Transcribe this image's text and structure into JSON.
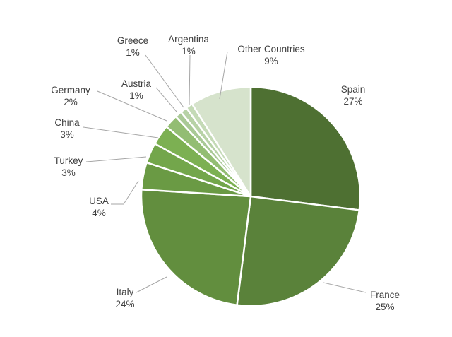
{
  "chart_data": {
    "type": "pie",
    "title": "",
    "start_angle_deg": 0,
    "direction": "clockwise",
    "slices": [
      {
        "name": "Spain",
        "label": "27%",
        "value": 27,
        "color": "#4e7032"
      },
      {
        "name": "France",
        "label": "25%",
        "value": 25,
        "color": "#5a823a"
      },
      {
        "name": "Italy",
        "label": "24%",
        "value": 24,
        "color": "#628e3e"
      },
      {
        "name": "USA",
        "label": "4%",
        "value": 4,
        "color": "#6a9a44"
      },
      {
        "name": "Turkey",
        "label": "3%",
        "value": 3,
        "color": "#73a64b"
      },
      {
        "name": "China",
        "label": "3%",
        "value": 3,
        "color": "#7cb052"
      },
      {
        "name": "Germany",
        "label": "2%",
        "value": 2,
        "color": "#93bd73"
      },
      {
        "name": "Austria",
        "label": "1%",
        "value": 1,
        "color": "#a9c996"
      },
      {
        "name": "Greece",
        "label": "1%",
        "value": 1,
        "color": "#b7d2a6"
      },
      {
        "name": "Argentina",
        "label": "1%",
        "value": 1,
        "color": "#c4dab6"
      },
      {
        "name": "Other Countries",
        "label": "9%",
        "value": 9,
        "color": "#d6e3cc"
      }
    ]
  }
}
